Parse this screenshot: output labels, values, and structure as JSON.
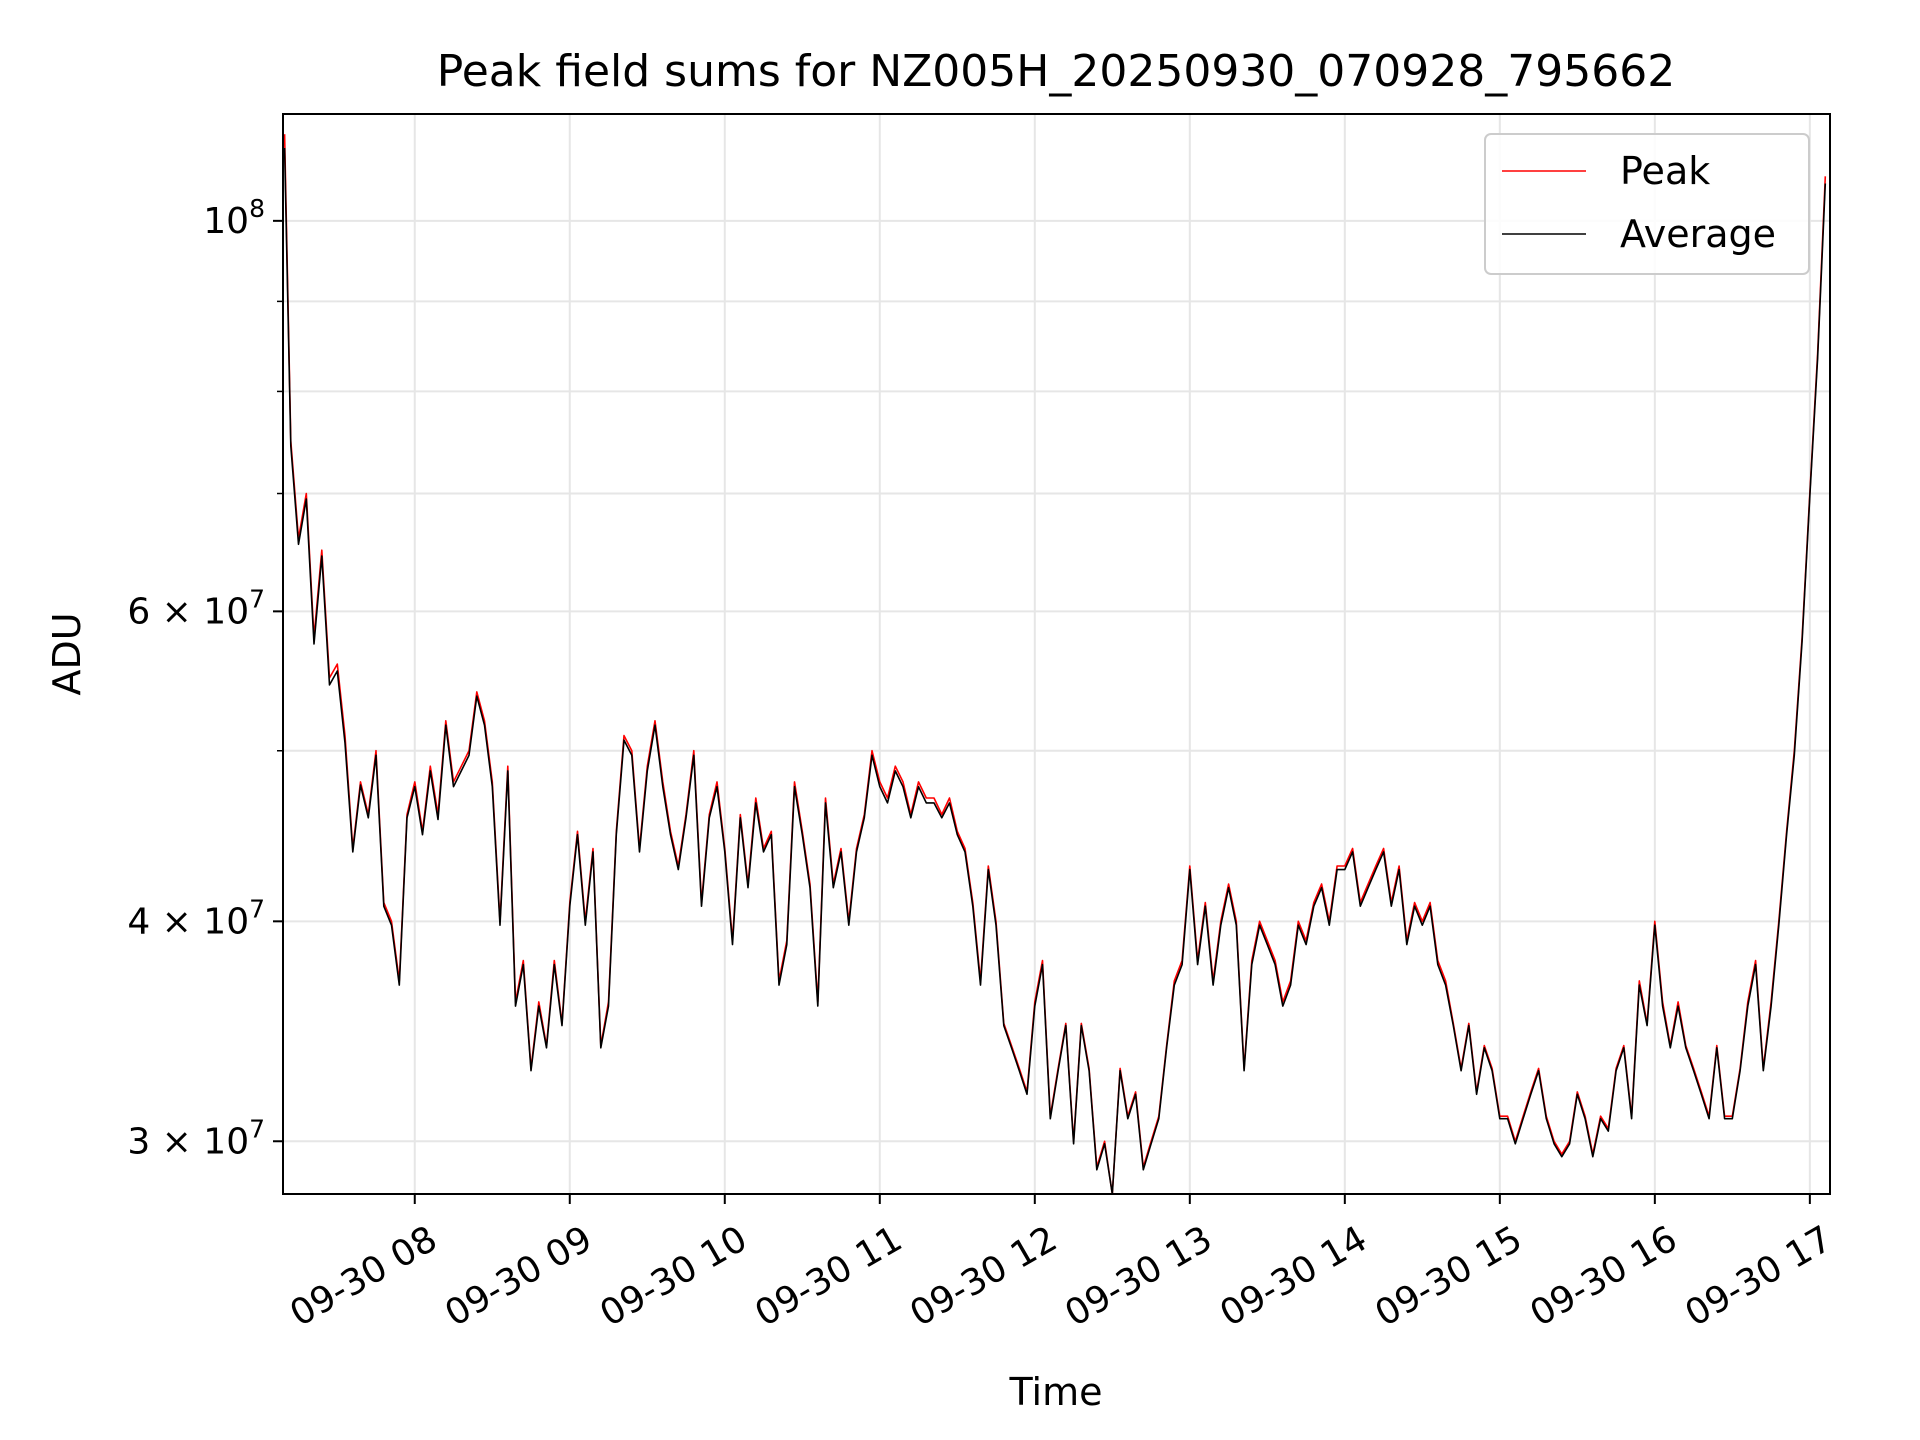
{
  "chart_data": {
    "type": "line",
    "title": "Peak field sums for NZ005H_20250930_070928_795662",
    "xlabel": "Time",
    "ylabel": "ADU",
    "yscale": "log",
    "xlim_hours": [
      7.15,
      17.13
    ],
    "ylim": [
      28000000,
      115000000
    ],
    "grid": true,
    "legend_position": "top-right",
    "x_ticks": [
      {
        "hour": 8,
        "label": "09-30 08"
      },
      {
        "hour": 9,
        "label": "09-30 09"
      },
      {
        "hour": 10,
        "label": "09-30 10"
      },
      {
        "hour": 11,
        "label": "09-30 11"
      },
      {
        "hour": 12,
        "label": "09-30 12"
      },
      {
        "hour": 13,
        "label": "09-30 13"
      },
      {
        "hour": 14,
        "label": "09-30 14"
      },
      {
        "hour": 15,
        "label": "09-30 15"
      },
      {
        "hour": 16,
        "label": "09-30 16"
      },
      {
        "hour": 17,
        "label": "09-30 17"
      }
    ],
    "y_major_ticks": [
      {
        "value": 100000000,
        "base": "10",
        "exp": "8"
      },
      {
        "value": 60000000,
        "base": "6 × 10",
        "exp": "7"
      },
      {
        "value": 40000000,
        "base": "4 × 10",
        "exp": "7"
      },
      {
        "value": 30000000,
        "base": "3 × 10",
        "exp": "7"
      }
    ],
    "y_minor_ticks": [
      90000000,
      80000000,
      70000000,
      50000000
    ],
    "x_hours": [
      7.16,
      7.2,
      7.25,
      7.3,
      7.35,
      7.4,
      7.45,
      7.5,
      7.55,
      7.6,
      7.65,
      7.7,
      7.75,
      7.8,
      7.85,
      7.9,
      7.95,
      8.0,
      8.05,
      8.1,
      8.15,
      8.2,
      8.25,
      8.3,
      8.35,
      8.4,
      8.45,
      8.5,
      8.55,
      8.6,
      8.65,
      8.7,
      8.75,
      8.8,
      8.85,
      8.9,
      8.95,
      9.0,
      9.05,
      9.1,
      9.15,
      9.2,
      9.25,
      9.3,
      9.35,
      9.4,
      9.45,
      9.5,
      9.55,
      9.6,
      9.65,
      9.7,
      9.75,
      9.8,
      9.85,
      9.9,
      9.95,
      10.0,
      10.05,
      10.1,
      10.15,
      10.2,
      10.25,
      10.3,
      10.35,
      10.4,
      10.45,
      10.5,
      10.55,
      10.6,
      10.65,
      10.7,
      10.75,
      10.8,
      10.85,
      10.9,
      10.95,
      11.0,
      11.05,
      11.1,
      11.15,
      11.2,
      11.25,
      11.3,
      11.35,
      11.4,
      11.45,
      11.5,
      11.55,
      11.6,
      11.65,
      11.7,
      11.75,
      11.8,
      11.85,
      11.9,
      11.95,
      12.0,
      12.05,
      12.1,
      12.15,
      12.2,
      12.25,
      12.3,
      12.35,
      12.4,
      12.45,
      12.5,
      12.55,
      12.6,
      12.65,
      12.7,
      12.75,
      12.8,
      12.85,
      12.9,
      12.95,
      13.0,
      13.05,
      13.1,
      13.15,
      13.2,
      13.25,
      13.3,
      13.35,
      13.4,
      13.45,
      13.5,
      13.55,
      13.6,
      13.65,
      13.7,
      13.75,
      13.8,
      13.85,
      13.9,
      13.95,
      14.0,
      14.05,
      14.1,
      14.15,
      14.2,
      14.25,
      14.3,
      14.35,
      14.4,
      14.45,
      14.5,
      14.55,
      14.6,
      14.65,
      14.7,
      14.75,
      14.8,
      14.85,
      14.9,
      14.95,
      15.0,
      15.05,
      15.1,
      15.15,
      15.2,
      15.25,
      15.3,
      15.35,
      15.4,
      15.45,
      15.5,
      15.55,
      15.6,
      15.65,
      15.7,
      15.75,
      15.8,
      15.85,
      15.9,
      15.95,
      16.0,
      16.05,
      16.1,
      16.15,
      16.2,
      16.25,
      16.3,
      16.35,
      16.4,
      16.45,
      16.5,
      16.55,
      16.6,
      16.65,
      16.7,
      16.75,
      16.8,
      16.85,
      16.9,
      16.95,
      17.0,
      17.05,
      17.1,
      17.13
    ],
    "series": [
      {
        "name": "Peak",
        "color": "#ff0000",
        "values": [
          112000000,
          75000000,
          66000000,
          70000000,
          58000000,
          65000000,
          55000000,
          56000000,
          51000000,
          44000000,
          48000000,
          46000000,
          50000000,
          41000000,
          40000000,
          37000000,
          46000000,
          48000000,
          45000000,
          49000000,
          46000000,
          52000000,
          48000000,
          49000000,
          50000000,
          54000000,
          52000000,
          48000000,
          40000000,
          49000000,
          36000000,
          38000000,
          33000000,
          36000000,
          34000000,
          38000000,
          35000000,
          41000000,
          45000000,
          40000000,
          44000000,
          34000000,
          36000000,
          45000000,
          51000000,
          50000000,
          44000000,
          49000000,
          52000000,
          48000000,
          45000000,
          43000000,
          46000000,
          50000000,
          41000000,
          46000000,
          48000000,
          44000000,
          39000000,
          46000000,
          42000000,
          47000000,
          44000000,
          45000000,
          37000000,
          39000000,
          48000000,
          45000000,
          42000000,
          36000000,
          47000000,
          42000000,
          44000000,
          40000000,
          44000000,
          46000000,
          50000000,
          48000000,
          47000000,
          49000000,
          48000000,
          46000000,
          48000000,
          47000000,
          47000000,
          46000000,
          47000000,
          45000000,
          44000000,
          41000000,
          37000000,
          43000000,
          40000000,
          35000000,
          34000000,
          33000000,
          32000000,
          36000000,
          38000000,
          31000000,
          33000000,
          35000000,
          30000000,
          35000000,
          33000000,
          29000000,
          30000000,
          28000000,
          33000000,
          31000000,
          32000000,
          29000000,
          30000000,
          31000000,
          34000000,
          37000000,
          38000000,
          43000000,
          38000000,
          41000000,
          37000000,
          40000000,
          42000000,
          40000000,
          33000000,
          38000000,
          40000000,
          39000000,
          38000000,
          36000000,
          37000000,
          40000000,
          39000000,
          41000000,
          42000000,
          40000000,
          43000000,
          43000000,
          44000000,
          41000000,
          42000000,
          43000000,
          44000000,
          41000000,
          43000000,
          39000000,
          41000000,
          40000000,
          41000000,
          38000000,
          37000000,
          35000000,
          33000000,
          35000000,
          32000000,
          34000000,
          33000000,
          31000000,
          31000000,
          30000000,
          31000000,
          32000000,
          33000000,
          31000000,
          30000000,
          29500000,
          30000000,
          32000000,
          31000000,
          29500000,
          31000000,
          30500000,
          33000000,
          34000000,
          31000000,
          37000000,
          35000000,
          40000000,
          36000000,
          34000000,
          36000000,
          34000000,
          33000000,
          32000000,
          31000000,
          34000000,
          31000000,
          31000000,
          33000000,
          36000000,
          38000000,
          33000000,
          36000000,
          40000000,
          45000000,
          50000000,
          58000000,
          70000000,
          84000000,
          106000000
        ]
      },
      {
        "name": "Average",
        "color": "#000000",
        "values": [
          110000000,
          74500000,
          65500000,
          69500000,
          57500000,
          64500000,
          54500000,
          55500000,
          50500000,
          43800000,
          47800000,
          45800000,
          49700000,
          40800000,
          39800000,
          36800000,
          45800000,
          47700000,
          44800000,
          48700000,
          45700000,
          51700000,
          47700000,
          48700000,
          49700000,
          53700000,
          51700000,
          47700000,
          39800000,
          48700000,
          35800000,
          37800000,
          32900000,
          35800000,
          33900000,
          37800000,
          34900000,
          40800000,
          44800000,
          39800000,
          43800000,
          33900000,
          35800000,
          44800000,
          50700000,
          49700000,
          43800000,
          48700000,
          51700000,
          47700000,
          44800000,
          42800000,
          45800000,
          49700000,
          40800000,
          45800000,
          47700000,
          43800000,
          38800000,
          45800000,
          41800000,
          46700000,
          43800000,
          44800000,
          36800000,
          38800000,
          47700000,
          44800000,
          41800000,
          35800000,
          46700000,
          41800000,
          43800000,
          39800000,
          43800000,
          45800000,
          49700000,
          47700000,
          46700000,
          48700000,
          47700000,
          45800000,
          47700000,
          46700000,
          46700000,
          45800000,
          46700000,
          44800000,
          43800000,
          40800000,
          36800000,
          42800000,
          39800000,
          34900000,
          33900000,
          32900000,
          31900000,
          35800000,
          37800000,
          30900000,
          32900000,
          34900000,
          29900000,
          34900000,
          32900000,
          28900000,
          29900000,
          27900000,
          32900000,
          30900000,
          31900000,
          28900000,
          29900000,
          30900000,
          33900000,
          36800000,
          37800000,
          42800000,
          37800000,
          40800000,
          36800000,
          39800000,
          41800000,
          39800000,
          32900000,
          37800000,
          39800000,
          38800000,
          37800000,
          35800000,
          36800000,
          39800000,
          38800000,
          40800000,
          41800000,
          39800000,
          42800000,
          42800000,
          43800000,
          40800000,
          41800000,
          42800000,
          43800000,
          40800000,
          42800000,
          38800000,
          40800000,
          39800000,
          40800000,
          37800000,
          36800000,
          34900000,
          32900000,
          34900000,
          31900000,
          33900000,
          32900000,
          30900000,
          30900000,
          29900000,
          30900000,
          31900000,
          32900000,
          30900000,
          29900000,
          29400000,
          29900000,
          31900000,
          30900000,
          29400000,
          30900000,
          30400000,
          32900000,
          33900000,
          30900000,
          36800000,
          34900000,
          39800000,
          35800000,
          33900000,
          35800000,
          33900000,
          32900000,
          31900000,
          30900000,
          33900000,
          30900000,
          30900000,
          32900000,
          35800000,
          37800000,
          32900000,
          35800000,
          39800000,
          44800000,
          49700000,
          57700000,
          69700000,
          83500000,
          105000000
        ]
      }
    ]
  }
}
